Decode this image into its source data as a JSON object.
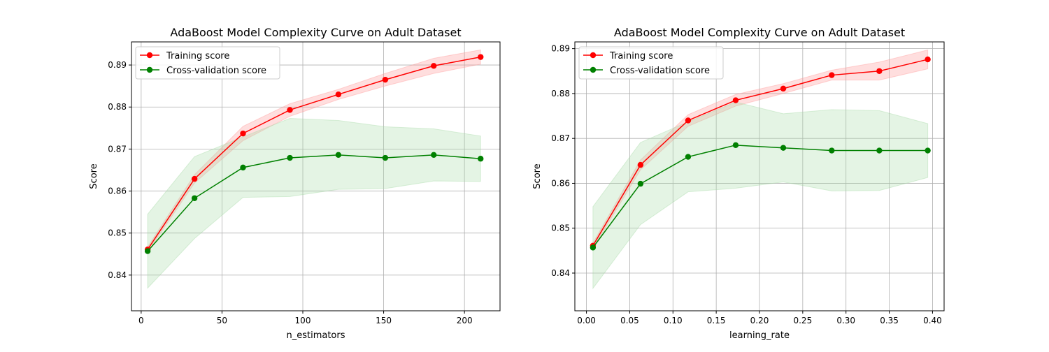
{
  "chart_data": [
    {
      "type": "line",
      "title": "AdaBoost Model Complexity Curve on Adult Dataset",
      "xlabel": "n_estimators",
      "ylabel": "Score",
      "xlim": [
        -6,
        222
      ],
      "ylim": [
        0.8315,
        0.8955
      ],
      "xticks": [
        0,
        50,
        100,
        150,
        200
      ],
      "xtick_labels": [
        "0",
        "50",
        "100",
        "150",
        "200"
      ],
      "yticks": [
        0.84,
        0.85,
        0.86,
        0.87,
        0.88,
        0.89
      ],
      "ytick_labels": [
        "0.84",
        "0.85",
        "0.86",
        "0.87",
        "0.88",
        "0.89"
      ],
      "grid": true,
      "legend_position": "top-left",
      "x": [
        4,
        33,
        63,
        92,
        122,
        151,
        181,
        210
      ],
      "series": [
        {
          "name": "Training score",
          "color": "#ff0000",
          "band_color": "#ff9999",
          "values": [
            0.8461,
            0.8629,
            0.8737,
            0.8793,
            0.883,
            0.8865,
            0.8898,
            0.8919
          ],
          "lower": [
            0.8455,
            0.8619,
            0.872,
            0.8778,
            0.8818,
            0.885,
            0.888,
            0.8902
          ],
          "upper": [
            0.8467,
            0.8639,
            0.8754,
            0.8808,
            0.8842,
            0.888,
            0.8916,
            0.8936
          ]
        },
        {
          "name": "Cross-validation score",
          "color": "#008000",
          "band_color": "#a6d9a6",
          "values": [
            0.8457,
            0.8583,
            0.8656,
            0.8679,
            0.8686,
            0.8679,
            0.8686,
            0.8677
          ],
          "lower": [
            0.8369,
            0.8487,
            0.8585,
            0.8587,
            0.8604,
            0.8606,
            0.8624,
            0.8623
          ],
          "upper": [
            0.8545,
            0.8682,
            0.8729,
            0.8773,
            0.8768,
            0.8753,
            0.8748,
            0.8731
          ]
        }
      ]
    },
    {
      "type": "line",
      "title": "AdaBoost Model Complexity Curve on Adult Dataset",
      "xlabel": "learning_rate",
      "ylabel": "Score",
      "xlim": [
        -0.0134,
        0.4134
      ],
      "ylim": [
        0.8316,
        0.8915
      ],
      "xticks": [
        0.0,
        0.05,
        0.1,
        0.15,
        0.2,
        0.25,
        0.3,
        0.35,
        0.4
      ],
      "xtick_labels": [
        "0.00",
        "0.05",
        "0.10",
        "0.15",
        "0.20",
        "0.25",
        "0.30",
        "0.35",
        "0.40"
      ],
      "yticks": [
        0.84,
        0.85,
        0.86,
        0.87,
        0.88,
        0.89
      ],
      "ytick_labels": [
        "0.84",
        "0.85",
        "0.86",
        "0.87",
        "0.88",
        "0.89"
      ],
      "grid": true,
      "legend_position": "top-left",
      "x": [
        0.0075,
        0.0625,
        0.1175,
        0.1725,
        0.2275,
        0.2835,
        0.3385,
        0.3945
      ],
      "series": [
        {
          "name": "Training score",
          "color": "#ff0000",
          "band_color": "#ff9999",
          "values": [
            0.8461,
            0.8641,
            0.874,
            0.8785,
            0.8811,
            0.8841,
            0.885,
            0.8876
          ],
          "lower": [
            0.8455,
            0.863,
            0.8727,
            0.8772,
            0.88,
            0.883,
            0.883,
            0.8855
          ],
          "upper": [
            0.8467,
            0.8652,
            0.8753,
            0.8798,
            0.8822,
            0.8852,
            0.887,
            0.8897
          ]
        },
        {
          "name": "Cross-validation score",
          "color": "#008000",
          "band_color": "#a6d9a6",
          "values": [
            0.8457,
            0.8599,
            0.8659,
            0.8685,
            0.8679,
            0.8673,
            0.8673,
            0.8673
          ],
          "lower": [
            0.8366,
            0.8508,
            0.8581,
            0.8589,
            0.8603,
            0.8583,
            0.8584,
            0.8613
          ],
          "upper": [
            0.8548,
            0.8691,
            0.8737,
            0.8781,
            0.8755,
            0.8764,
            0.8762,
            0.8733
          ]
        }
      ]
    }
  ]
}
